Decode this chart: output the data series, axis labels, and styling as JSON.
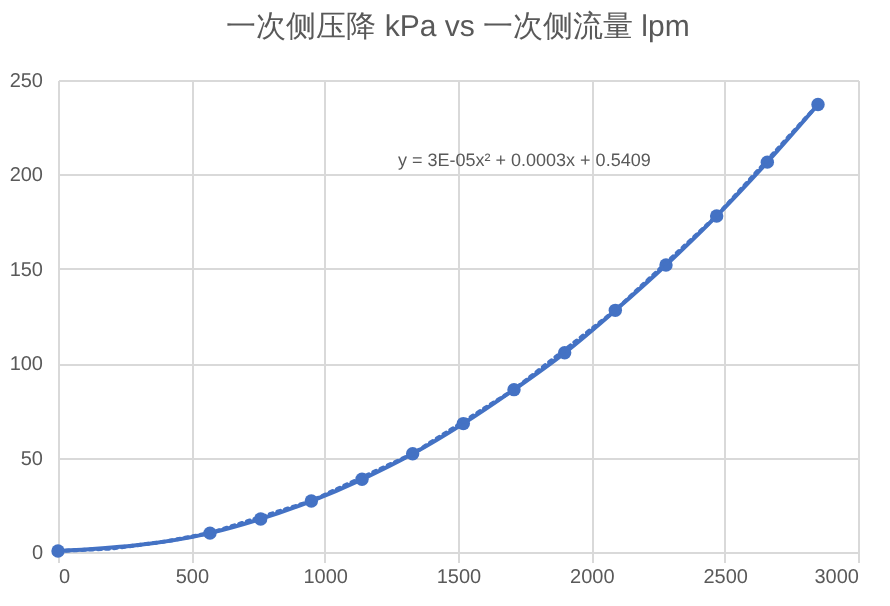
{
  "chart_data": {
    "type": "line",
    "title": "一次侧压降 kPa vs 一次侧流量 lpm",
    "series": [
      {
        "color": "#4472c4",
        "marker": "circle",
        "line_style": "solid",
        "x": [
          0,
          570,
          760,
          950,
          1140,
          1330,
          1520,
          1710,
          1900,
          2090,
          2280,
          2470,
          2660,
          2850
        ],
        "values": [
          0.5,
          10,
          17.5,
          27,
          38.5,
          52,
          68,
          86,
          105.5,
          128,
          152,
          178,
          206.5,
          237
        ]
      },
      {
        "type": "line",
        "color": "#4472c4",
        "marker": "none",
        "line_style": "dotted",
        "x": [
          0,
          200,
          400,
          570,
          950,
          1330,
          1710,
          2090,
          2470,
          2850
        ],
        "values": [
          0.5,
          1.8,
          5.5,
          10,
          27,
          52,
          86,
          128,
          178,
          237
        ]
      }
    ],
    "annotations": [
      "y = 3E-05x² + 0.0003x + 0.5409"
    ],
    "xlim": [
      0,
      3000
    ],
    "xticks": [
      0,
      500,
      1000,
      1500,
      2000,
      2500,
      3000
    ],
    "ylim": [
      0,
      250
    ],
    "yticks": [
      0,
      50,
      100,
      150,
      200,
      250
    ],
    "grid": true
  }
}
